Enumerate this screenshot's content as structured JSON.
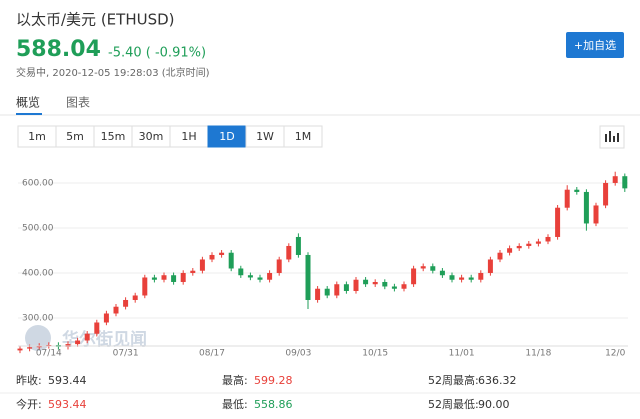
{
  "header": {
    "title": "以太币/美元 (ETHUSD)",
    "price": "588.04",
    "change": "-5.40 ( -0.91%)",
    "status": "交易中, 2020-12-05 19:28:03 (北京时间)",
    "button": "+加自选"
  },
  "tabs": [
    "概览",
    "图表"
  ],
  "periods": [
    "1m",
    "5m",
    "15m",
    "30m",
    "1H",
    "1D",
    "1W",
    "1M"
  ],
  "watermark": "华尔街见闻",
  "chart_data": {
    "type": "candlestick",
    "categories": [
      null,
      null,
      null,
      "07/14",
      null,
      null,
      null,
      null,
      null,
      null,
      null,
      "07/31",
      null,
      null,
      null,
      null,
      null,
      null,
      null,
      null,
      "08/17",
      null,
      null,
      null,
      null,
      null,
      null,
      null,
      null,
      "09/03",
      null,
      null,
      null,
      null,
      null,
      null,
      null,
      "10/15",
      null,
      null,
      null,
      null,
      null,
      null,
      null,
      null,
      "11/01",
      null,
      null,
      null,
      null,
      null,
      null,
      null,
      "11/18",
      null,
      null,
      null,
      null,
      null,
      null,
      null,
      "12/0",
      null
    ],
    "open": [
      228,
      232,
      235,
      238,
      240,
      236,
      242,
      250,
      265,
      290,
      310,
      325,
      340,
      350,
      390,
      385,
      395,
      380,
      400,
      405,
      430,
      440,
      445,
      410,
      395,
      390,
      385,
      400,
      430,
      480,
      440,
      340,
      365,
      350,
      375,
      360,
      385,
      375,
      380,
      370,
      365,
      375,
      410,
      415,
      405,
      395,
      385,
      390,
      385,
      400,
      430,
      445,
      455,
      460,
      465,
      470,
      480,
      545,
      585,
      580,
      510,
      550,
      600,
      615
    ],
    "close": [
      232,
      235,
      238,
      240,
      236,
      242,
      250,
      265,
      290,
      310,
      325,
      340,
      350,
      390,
      385,
      395,
      380,
      400,
      405,
      430,
      440,
      445,
      410,
      395,
      390,
      385,
      400,
      430,
      460,
      440,
      340,
      365,
      350,
      375,
      360,
      385,
      375,
      380,
      370,
      365,
      375,
      410,
      415,
      405,
      395,
      385,
      390,
      385,
      400,
      430,
      445,
      455,
      460,
      465,
      470,
      480,
      545,
      585,
      580,
      510,
      550,
      600,
      615,
      588
    ],
    "high": [
      238,
      241,
      244,
      246,
      246,
      248,
      256,
      271,
      296,
      316,
      331,
      346,
      356,
      396,
      396,
      401,
      401,
      406,
      411,
      436,
      446,
      451,
      451,
      416,
      401,
      396,
      406,
      436,
      466,
      488,
      446,
      371,
      371,
      381,
      381,
      391,
      391,
      386,
      386,
      376,
      381,
      416,
      421,
      421,
      411,
      401,
      396,
      396,
      406,
      436,
      451,
      461,
      466,
      471,
      476,
      486,
      551,
      595,
      591,
      586,
      556,
      606,
      625,
      621
    ],
    "low": [
      222,
      226,
      229,
      232,
      230,
      230,
      236,
      244,
      259,
      284,
      304,
      319,
      334,
      344,
      379,
      379,
      374,
      374,
      394,
      399,
      424,
      434,
      404,
      389,
      384,
      379,
      379,
      394,
      424,
      434,
      320,
      334,
      344,
      344,
      354,
      354,
      369,
      369,
      364,
      359,
      359,
      369,
      404,
      399,
      389,
      379,
      379,
      379,
      379,
      394,
      424,
      439,
      449,
      454,
      459,
      464,
      474,
      539,
      574,
      494,
      504,
      544,
      594,
      580
    ],
    "up_color": "#e8403a",
    "down_color": "#1f9e58",
    "ylim": [
      240,
      651
    ],
    "yticks": [
      {
        "value": 300,
        "label": "300.00"
      },
      {
        "value": 400,
        "label": "400.00"
      },
      {
        "value": 500,
        "label": "500.00"
      },
      {
        "value": 600,
        "label": "600.00"
      }
    ],
    "grid": true
  },
  "stats": [
    [
      "昨收:",
      "593.44"
    ],
    [
      "最高:",
      "599.28"
    ],
    [
      "52周最高:",
      "636.32"
    ],
    [
      "今开:",
      "593.44"
    ],
    [
      "最低:",
      "558.86"
    ],
    [
      "52周最低:",
      "90.00"
    ]
  ]
}
